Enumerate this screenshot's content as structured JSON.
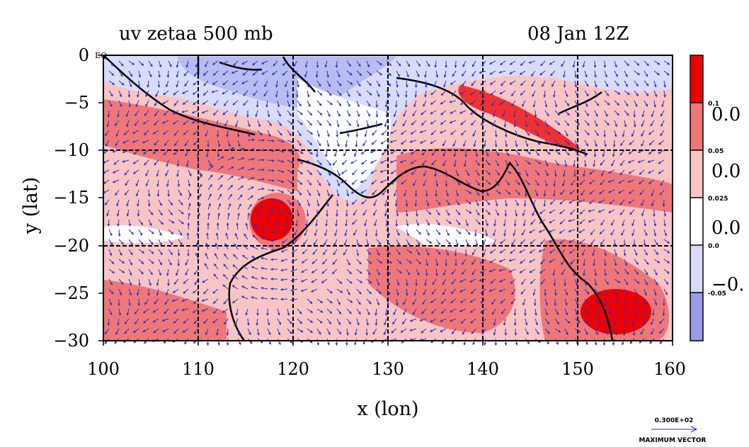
{
  "chart_data": {
    "type": "heatmap",
    "title": "uv zetaa 500 mb",
    "subtitle": "08 Jan 12Z",
    "xlabel": "x (lon)",
    "ylabel": "y (lat)",
    "xlim": [
      100,
      160
    ],
    "ylim": [
      -30,
      0
    ],
    "xticks": [
      "100",
      "110",
      "120",
      "130",
      "140",
      "150",
      "160"
    ],
    "yticks": [
      "0",
      "−5",
      "−10",
      "−15",
      "−20",
      "−25",
      "−30"
    ],
    "grid": true,
    "corner_label": "EQ",
    "colorbar": {
      "levels": [
        "0.1",
        "0.05",
        "0.025",
        "0.0",
        "-0.05"
      ],
      "side_labels": [
        "0.0",
        "0.0",
        "0.0",
        "−0."
      ],
      "colors": [
        "#ee0000",
        "#f07777",
        "#f8c4c4",
        "#ffffff",
        "#d8dcf8",
        "#9a9ce8"
      ]
    },
    "vector_legend": {
      "value": "0.300E+02",
      "label": "MAXIMUM VECTOR"
    },
    "features": {
      "high_vorticity_center": {
        "lon": 117.5,
        "lat": -17.3
      },
      "secondary_center": {
        "lon": 154.5,
        "lat": -27
      }
    }
  },
  "colors": {
    "strong_pos": "#ee0000",
    "pos": "#f07777",
    "weak_pos": "#f8c4c4",
    "neg": "#d8dcf8",
    "strong_neg": "#9a9ce8",
    "vectors": "#2233cc",
    "coast": "#000000"
  }
}
